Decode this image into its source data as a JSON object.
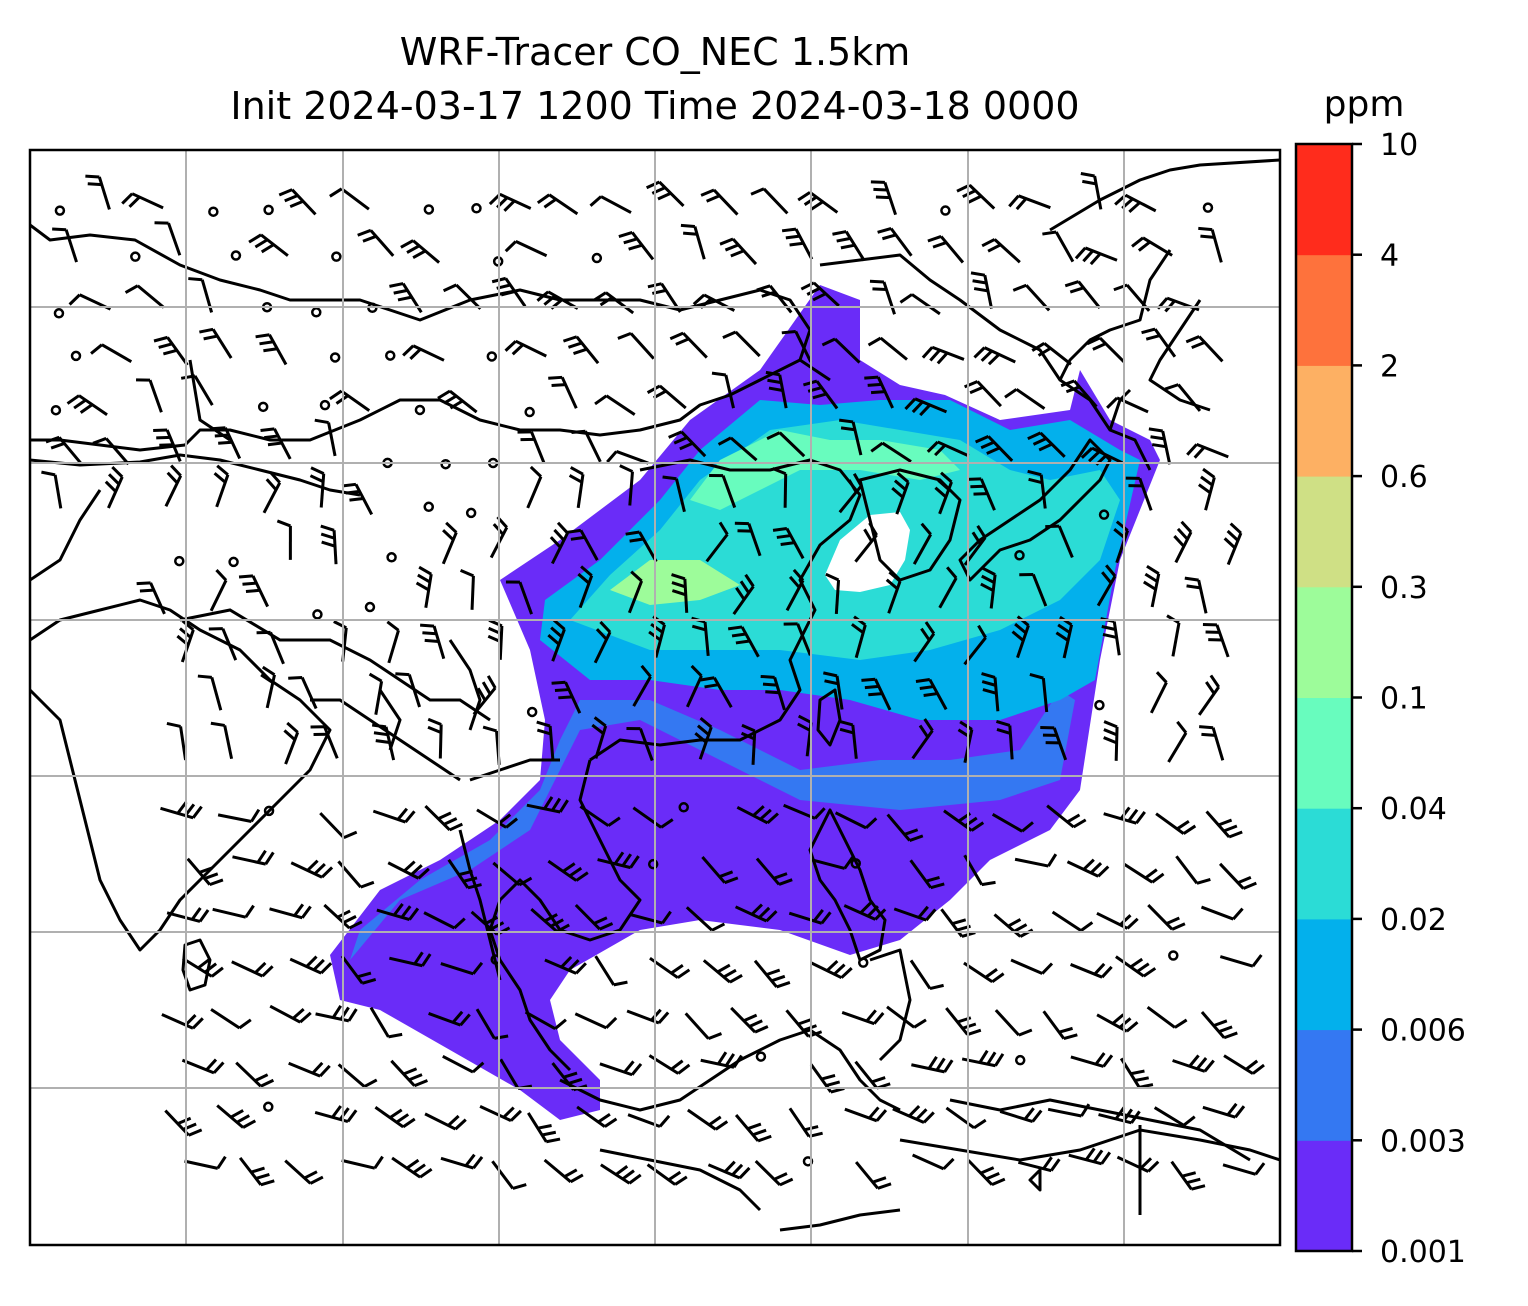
{
  "title_line1": "WRF-Tracer CO_NEC 1.5km",
  "title_line2": "Init 2024-03-17 1200 Time 2024-03-18 0000",
  "colorbar": {
    "unit": "ppm",
    "levels": [
      "0.001",
      "0.003",
      "0.006",
      "0.02",
      "0.04",
      "0.1",
      "0.3",
      "0.6",
      "2",
      "4",
      "10"
    ],
    "colors": [
      "#6a2cf8",
      "#3478f2",
      "#03b0ec",
      "#2bdcd6",
      "#68fcbe",
      "#9dfc9a",
      "#cfe085",
      "#fdb063",
      "#fe723c",
      "#ff2c1c"
    ]
  },
  "map": {
    "grid": true,
    "field": "CO_NEC tracer concentration at 1.5km",
    "overlays": [
      "coastlines",
      "country-borders",
      "wind-barbs"
    ]
  }
}
